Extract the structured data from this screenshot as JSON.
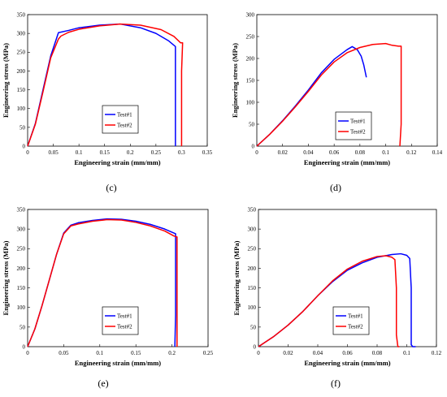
{
  "chart_data": [
    {
      "panel": "(c)",
      "type": "line",
      "xlabel": "Engineering strain (mm/mm)",
      "ylabel": "Engineering stress (MPa)",
      "xlim": [
        0,
        0.35
      ],
      "ylim": [
        0,
        350
      ],
      "xticks": [
        "0",
        "0.05",
        "0.1",
        "0.15",
        "0.2",
        "0.25",
        "0.3",
        "0.35"
      ],
      "yticks": [
        "0",
        "50",
        "100",
        "150",
        "200",
        "250",
        "300",
        "350"
      ],
      "legend": "center-right",
      "series": [
        {
          "name": "Test#1",
          "color": "#0000ff",
          "x": [
            0,
            0.015,
            0.03,
            0.045,
            0.06,
            0.08,
            0.1,
            0.14,
            0.18,
            0.22,
            0.25,
            0.275,
            0.288,
            0.288,
            0.288,
            0.288
          ],
          "y": [
            0,
            60,
            150,
            240,
            302,
            308,
            315,
            322,
            325,
            315,
            300,
            280,
            265,
            200,
            100,
            0
          ]
        },
        {
          "name": "Test#2",
          "color": "#ff0000",
          "x": [
            0,
            0.015,
            0.03,
            0.045,
            0.06,
            0.065,
            0.08,
            0.1,
            0.14,
            0.18,
            0.22,
            0.26,
            0.285,
            0.298,
            0.302,
            0.3,
            0.3,
            0.3
          ],
          "y": [
            0,
            58,
            145,
            235,
            285,
            293,
            303,
            311,
            320,
            325,
            322,
            310,
            292,
            275,
            275,
            200,
            100,
            0
          ]
        }
      ]
    },
    {
      "panel": "(d)",
      "type": "line",
      "xlabel": "Engineering strain (mm/mm)",
      "ylabel": "Engineering stress (MPa)",
      "xlim": [
        0,
        0.14
      ],
      "ylim": [
        0,
        300
      ],
      "xticks": [
        "0",
        "0.02",
        "0.04",
        "0.06",
        "0.08",
        "0.1",
        "0.12",
        "0.14"
      ],
      "yticks": [
        "0",
        "50",
        "100",
        "150",
        "200",
        "250",
        "300"
      ],
      "legend": "center-right",
      "series": [
        {
          "name": "Test#1",
          "color": "#0000ff",
          "x": [
            0,
            0.01,
            0.02,
            0.03,
            0.04,
            0.05,
            0.06,
            0.07,
            0.074,
            0.078,
            0.081,
            0.083,
            0.085
          ],
          "y": [
            0,
            27,
            58,
            92,
            128,
            167,
            198,
            220,
            227,
            220,
            205,
            185,
            157
          ]
        },
        {
          "name": "Test#2",
          "color": "#ff0000",
          "x": [
            0,
            0.01,
            0.02,
            0.03,
            0.04,
            0.05,
            0.06,
            0.07,
            0.08,
            0.09,
            0.1,
            0.105,
            0.11,
            0.112,
            0.112,
            0.112,
            0.111
          ],
          "y": [
            0,
            27,
            57,
            90,
            125,
            162,
            192,
            213,
            225,
            232,
            234,
            230,
            228,
            228,
            150,
            50,
            0
          ]
        }
      ]
    },
    {
      "panel": "(e)",
      "type": "line",
      "xlabel": "Engineering strain (mm/mm)",
      "ylabel": "Engineering stress (MPa)",
      "xlim": [
        0,
        0.25
      ],
      "ylim": [
        0,
        350
      ],
      "xticks": [
        "0",
        "0.05",
        "0.1",
        "0.15",
        "0.2",
        "0.25"
      ],
      "yticks": [
        "0",
        "50",
        "100",
        "150",
        "200",
        "250",
        "300",
        "350"
      ],
      "legend": "bottom-right",
      "series": [
        {
          "name": "Test#1",
          "color": "#0000ff",
          "x": [
            0,
            0.01,
            0.02,
            0.03,
            0.04,
            0.05,
            0.06,
            0.07,
            0.09,
            0.11,
            0.13,
            0.15,
            0.17,
            0.19,
            0.205,
            0.205,
            0.205,
            0.204
          ],
          "y": [
            0,
            45,
            105,
            170,
            235,
            290,
            310,
            316,
            322,
            326,
            325,
            320,
            312,
            300,
            288,
            200,
            80,
            0
          ]
        },
        {
          "name": "Test#2",
          "color": "#ff0000",
          "x": [
            0,
            0.01,
            0.02,
            0.03,
            0.04,
            0.05,
            0.06,
            0.07,
            0.09,
            0.11,
            0.13,
            0.15,
            0.17,
            0.19,
            0.203,
            0.207,
            0.207,
            0.207
          ],
          "y": [
            0,
            45,
            105,
            170,
            235,
            288,
            308,
            313,
            320,
            324,
            323,
            317,
            308,
            295,
            282,
            280,
            100,
            0
          ]
        }
      ]
    },
    {
      "panel": "(f)",
      "type": "line",
      "xlabel": "Engineering strain (mm/mm)",
      "ylabel": "Engineering stress (MPa)",
      "xlim": [
        0,
        0.12
      ],
      "ylim": [
        0,
        350
      ],
      "xticks": [
        "0",
        "0.02",
        "0.04",
        "0.06",
        "0.08",
        "0.1",
        "0.12"
      ],
      "yticks": [
        "0",
        "50",
        "100",
        "150",
        "200",
        "250",
        "300",
        "350"
      ],
      "legend": "bottom-right",
      "series": [
        {
          "name": "Test#1",
          "color": "#0000ff",
          "x": [
            0,
            0.01,
            0.02,
            0.03,
            0.04,
            0.05,
            0.06,
            0.07,
            0.08,
            0.09,
            0.096,
            0.1,
            0.102,
            0.103,
            0.103,
            0.104,
            0.106
          ],
          "y": [
            0,
            25,
            55,
            90,
            130,
            166,
            195,
            214,
            228,
            235,
            237,
            233,
            225,
            150,
            5,
            0,
            0
          ]
        },
        {
          "name": "Test#2",
          "color": "#ff0000",
          "x": [
            0,
            0.01,
            0.02,
            0.03,
            0.04,
            0.05,
            0.06,
            0.07,
            0.08,
            0.086,
            0.09,
            0.092,
            0.093,
            0.093,
            0.094,
            0.095
          ],
          "y": [
            0,
            25,
            55,
            90,
            130,
            168,
            198,
            218,
            230,
            232,
            228,
            222,
            150,
            30,
            0,
            0
          ]
        }
      ]
    }
  ]
}
